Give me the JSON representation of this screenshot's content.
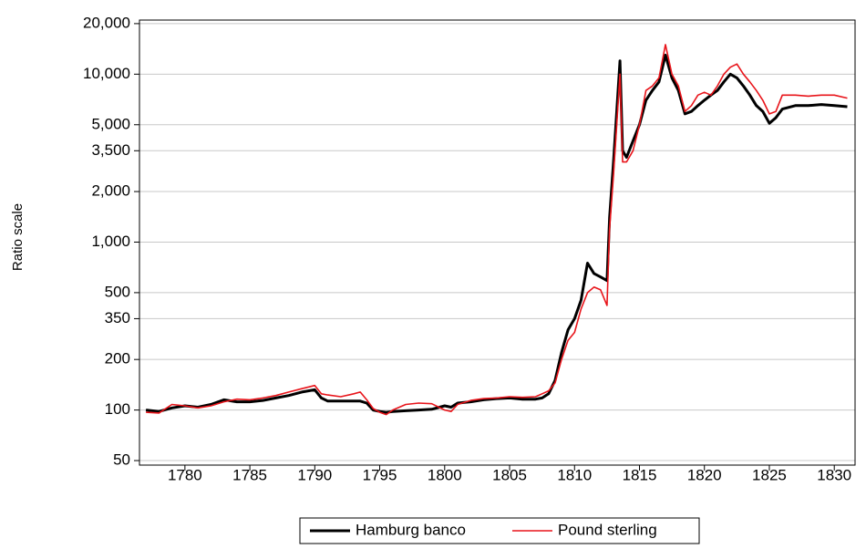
{
  "chart_data": {
    "type": "line",
    "y_label": "Ratio scale",
    "log_y": true,
    "grid": true,
    "legend_position": "bottom",
    "x": [
      1777,
      1778,
      1779,
      1780,
      1781,
      1782,
      1783,
      1784,
      1785,
      1786,
      1787,
      1788,
      1789,
      1790,
      1790.5,
      1791,
      1792,
      1793,
      1793.5,
      1794,
      1794.5,
      1795,
      1795.5,
      1796,
      1797,
      1798,
      1799,
      1800,
      1800.5,
      1801,
      1802,
      1803,
      1804,
      1805,
      1806,
      1807,
      1807.5,
      1808,
      1808.5,
      1809,
      1809.5,
      1810,
      1810.5,
      1811,
      1811.5,
      1812,
      1812.5,
      1812.7,
      1813,
      1813.5,
      1813.7,
      1814,
      1814.5,
      1815,
      1815.5,
      1816,
      1816.5,
      1817,
      1817.5,
      1818,
      1818.5,
      1819,
      1819.5,
      1820,
      1820.5,
      1821,
      1821.5,
      1822,
      1822.5,
      1823,
      1823.5,
      1824,
      1824.5,
      1825,
      1825.5,
      1826,
      1827,
      1828,
      1829,
      1830,
      1831
    ],
    "series": [
      {
        "name": "Hamburg banco",
        "color": "#000000",
        "width": 3,
        "values": [
          100,
          98,
          103,
          106,
          104,
          108,
          115,
          112,
          112,
          114,
          118,
          122,
          128,
          132,
          118,
          113,
          113,
          113,
          113,
          110,
          100,
          98,
          97,
          98,
          99,
          100,
          101,
          106,
          104,
          110,
          112,
          115,
          117,
          118,
          116,
          116,
          118,
          125,
          150,
          220,
          300,
          350,
          450,
          750,
          650,
          620,
          590,
          1400,
          3000,
          12000,
          3500,
          3200,
          4000,
          5000,
          7000,
          8000,
          9000,
          13000,
          9500,
          8000,
          5800,
          6000,
          6500,
          7000,
          7500,
          8000,
          9000,
          10000,
          9500,
          8500,
          7500,
          6500,
          6000,
          5100,
          5500,
          6200,
          6500,
          6500,
          6600,
          6500,
          6400
        ]
      },
      {
        "name": "Pound sterling",
        "color": "#e8141a",
        "width": 1.6,
        "values": [
          97,
          96,
          108,
          106,
          103,
          106,
          112,
          116,
          115,
          118,
          122,
          128,
          134,
          140,
          125,
          123,
          120,
          125,
          128,
          115,
          102,
          97,
          94,
          100,
          108,
          110,
          109,
          100,
          98,
          108,
          114,
          117,
          118,
          120,
          119,
          120,
          125,
          130,
          145,
          200,
          260,
          290,
          400,
          500,
          540,
          520,
          420,
          1200,
          2500,
          10000,
          3000,
          3000,
          3500,
          5000,
          8000,
          8500,
          9500,
          15000,
          10000,
          8500,
          6000,
          6500,
          7500,
          7800,
          7500,
          8500,
          10000,
          11000,
          11500,
          10000,
          9000,
          8000,
          7000,
          5800,
          6000,
          7500,
          7500,
          7400,
          7500,
          7500,
          7200
        ]
      }
    ],
    "xlim": [
      1776.5,
      1831.6
    ],
    "xticks": [
      1780,
      1785,
      1790,
      1795,
      1800,
      1805,
      1810,
      1815,
      1820,
      1825,
      1830
    ],
    "ylim": [
      47,
      21000
    ],
    "yticks": [
      50,
      100,
      200,
      350,
      500,
      {
        "value": 1000,
        "label": "1,000"
      },
      {
        "value": 2000,
        "label": "2,000"
      },
      {
        "value": 3500,
        "label": "3,500"
      },
      {
        "value": 5000,
        "label": "5,000"
      },
      {
        "value": 10000,
        "label": "10,000"
      },
      {
        "value": 20000,
        "label": "20,000"
      }
    ]
  }
}
